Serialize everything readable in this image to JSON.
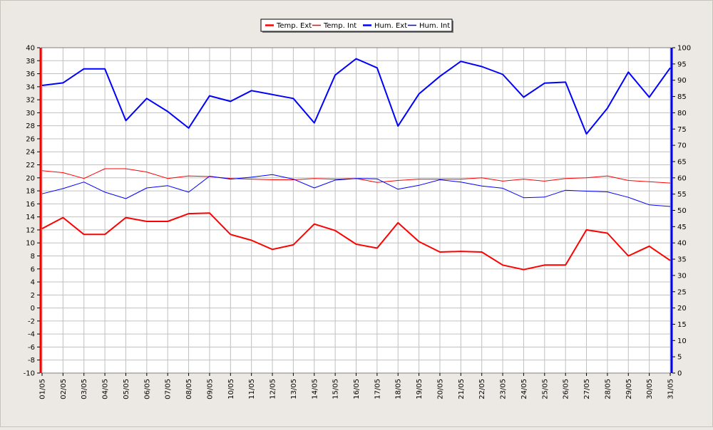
{
  "chart_data": {
    "type": "line",
    "title": "",
    "xlabel": "",
    "ylabel": "",
    "categories": [
      "01/05",
      "02/05",
      "03/05",
      "04/05",
      "05/05",
      "06/05",
      "07/05",
      "08/05",
      "09/05",
      "10/05",
      "11/05",
      "12/05",
      "13/05",
      "14/05",
      "15/05",
      "16/05",
      "17/05",
      "18/05",
      "19/05",
      "20/05",
      "21/05",
      "22/05",
      "23/05",
      "24/05",
      "25/05",
      "26/05",
      "27/05",
      "28/05",
      "29/05",
      "30/05",
      "31/05"
    ],
    "y_left": {
      "min": -10,
      "max": 40,
      "step": 2,
      "tick_labels": [
        "-10",
        "-8",
        "-6",
        "-4",
        "-2",
        "0",
        "2",
        "4",
        "6",
        "8",
        "10",
        "12",
        "14",
        "16",
        "18",
        "20",
        "22",
        "24",
        "26",
        "28",
        "30",
        "32",
        "34",
        "36",
        "38",
        "40"
      ]
    },
    "y_right": {
      "min": 0,
      "max": 100,
      "step": 5,
      "tick_labels": [
        "0",
        "5",
        "10",
        "15",
        "20",
        "25",
        "30",
        "35",
        "40",
        "45",
        "50",
        "55",
        "60",
        "65",
        "70",
        "75",
        "80",
        "85",
        "90",
        "95",
        "100"
      ]
    },
    "grid": true,
    "legend_position": "top-center",
    "series": [
      {
        "name": "Temp. Ext",
        "axis": "left",
        "color": "#ff0000",
        "width": 2,
        "values": [
          12.2,
          13.9,
          11.3,
          11.3,
          13.9,
          13.3,
          13.3,
          14.5,
          14.6,
          11.3,
          10.4,
          9.0,
          9.7,
          12.9,
          11.9,
          9.8,
          9.2,
          13.1,
          10.2,
          8.6,
          8.7,
          8.6,
          6.6,
          5.9,
          6.6,
          6.6,
          12.0,
          11.5,
          8.0,
          9.5,
          7.3
        ]
      },
      {
        "name": "Temp. Int",
        "axis": "left",
        "color": "#ff0000",
        "width": 1,
        "values": [
          21.1,
          20.8,
          19.9,
          21.4,
          21.4,
          20.9,
          19.9,
          20.3,
          20.2,
          19.9,
          19.8,
          19.7,
          19.7,
          19.9,
          19.8,
          19.9,
          19.3,
          19.6,
          19.8,
          19.8,
          19.8,
          20.0,
          19.5,
          19.8,
          19.5,
          19.9,
          20.0,
          20.3,
          19.6,
          19.4,
          19.2
        ]
      },
      {
        "name": "Hum. Ext",
        "axis": "right",
        "color": "#0000ff",
        "width": 2,
        "values": [
          88.4,
          89.2,
          93.5,
          93.5,
          77.6,
          84.4,
          80.4,
          75.3,
          85.2,
          83.5,
          86.8,
          85.6,
          84.4,
          76.9,
          91.6,
          96.6,
          93.8,
          75.9,
          85.8,
          91.2,
          95.8,
          94.2,
          91.8,
          84.8,
          89.1,
          89.4,
          73.5,
          81.4,
          92.5,
          84.8,
          93.8
        ]
      },
      {
        "name": "Hum. Int",
        "axis": "right",
        "color": "#0000ff",
        "width": 1,
        "values": [
          55.1,
          56.7,
          58.7,
          55.6,
          53.6,
          56.9,
          57.6,
          55.6,
          60.5,
          59.6,
          60.2,
          61.0,
          59.6,
          56.9,
          59.3,
          59.8,
          59.7,
          56.5,
          57.7,
          59.4,
          58.7,
          57.5,
          56.8,
          53.9,
          54.1,
          56.2,
          55.9,
          55.7,
          54.0,
          51.7,
          51.2
        ]
      }
    ]
  }
}
